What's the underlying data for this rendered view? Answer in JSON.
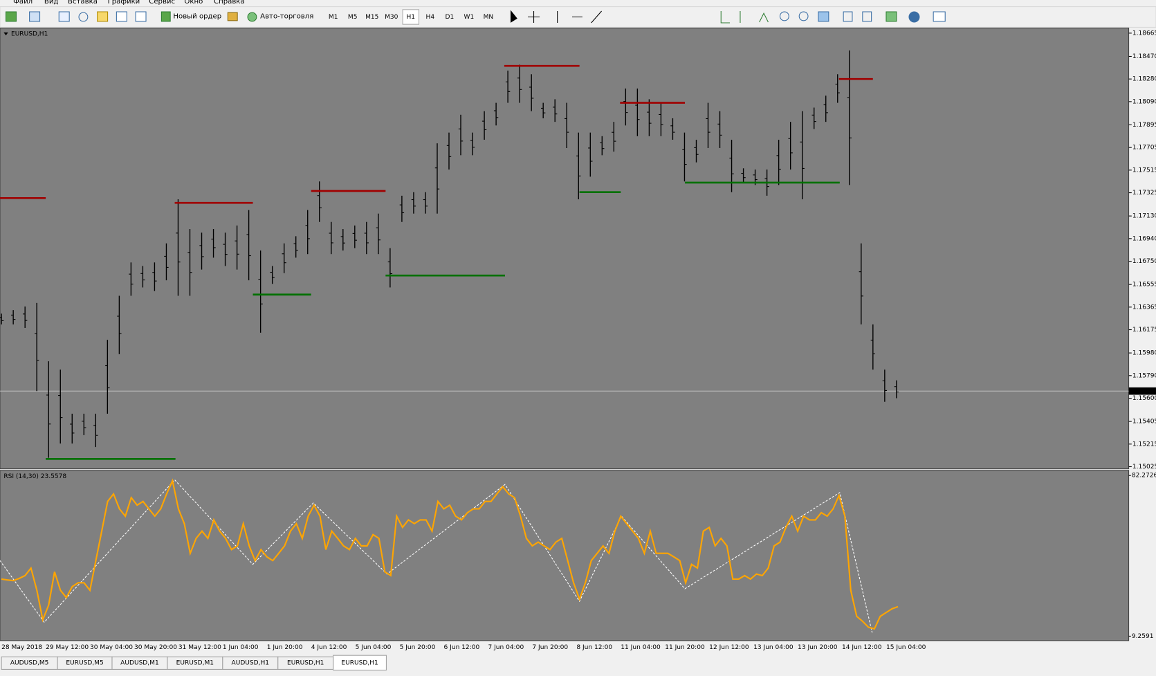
{
  "menu": [
    "Файл",
    "Вид",
    "Вставка",
    "Графики",
    "Сервис",
    "Окно",
    "Справка"
  ],
  "toolbar": {
    "new_order": "Новый ордер",
    "auto_trading": "Авто-торговля",
    "timeframes": [
      "M1",
      "M5",
      "M15",
      "M30",
      "H1",
      "H4",
      "D1",
      "W1",
      "MN"
    ]
  },
  "chart": {
    "title": "EURUSD,H1",
    "price_axis": {
      "ylim": [
        1.15007,
        1.18708
      ],
      "yticks": [
        1.18665,
        {
          "value": 1.1847,
          "label": "1.18470"
        },
        {
          "value": 1.1828,
          "label": "1.18280"
        },
        {
          "value": 1.1809,
          "label": "1.18090"
        },
        1.17895,
        1.17705,
        1.17515,
        1.17325,
        {
          "value": 1.1713,
          "label": "1.17130"
        },
        {
          "value": 1.1694,
          "label": "1.16940"
        },
        {
          "value": 1.1675,
          "label": "1.16750"
        },
        1.16555,
        1.16365,
        1.16175,
        {
          "value": 1.1598,
          "label": "1.15980"
        },
        {
          "value": 1.1579,
          "label": "1.15790"
        },
        {
          "value": 1.156,
          "label": "1.15600"
        },
        1.15405,
        1.15215,
        1.15025
      ]
    },
    "current_price": {
      "value": 1.1566,
      "label": "1.15660"
    },
    "bar_color": "#000000",
    "highs": [
      1.1631,
      1.1634,
      1.1637,
      1.164,
      1.1591,
      1.1584,
      1.1547,
      1.1547,
      1.1547,
      1.1609,
      1.1646,
      1.1674,
      1.1671,
      1.1674,
      1.169,
      1.1727,
      1.1702,
      1.1699,
      1.1702,
      1.1699,
      1.1705,
      1.1718,
      1.1684,
      1.1671,
      1.169,
      1.1696,
      1.1718,
      1.1742,
      1.1708,
      1.1702,
      1.1705,
      1.1708,
      1.1715,
      1.1686,
      1.173,
      1.1733,
      1.1733,
      1.1774,
      1.1783,
      1.1798,
      1.1783,
      1.1801,
      1.1808,
      1.1835,
      1.184,
      1.1832,
      1.1808,
      1.1811,
      1.1808,
      1.1783,
      1.1783,
      1.178,
      1.1792,
      1.182,
      1.182,
      1.1811,
      1.1808,
      1.1795,
      1.1783,
      1.1777,
      1.1808,
      1.1801,
      1.1777,
      1.1753,
      1.1752,
      1.1752,
      1.1777,
      1.1792,
      1.1801,
      1.1804,
      1.1814,
      1.1832,
      1.1852,
      1.169,
      1.1622,
      1.1584,
      1.1575
    ],
    "lows": [
      1.1622,
      1.1622,
      1.1619,
      1.1566,
      1.151,
      1.1522,
      1.1522,
      1.1529,
      1.1519,
      1.1547,
      1.1597,
      1.1646,
      1.1653,
      1.165,
      1.1659,
      1.1646,
      1.1646,
      1.1668,
      1.1678,
      1.1671,
      1.1668,
      1.1659,
      1.1615,
      1.1656,
      1.1665,
      1.1678,
      1.1681,
      1.1708,
      1.1681,
      1.1684,
      1.1686,
      1.1681,
      1.1681,
      1.1653,
      1.1708,
      1.1715,
      1.1715,
      1.1715,
      1.1752,
      1.1764,
      1.1764,
      1.1777,
      1.1789,
      1.1808,
      1.1808,
      1.1801,
      1.1795,
      1.1792,
      1.177,
      1.1727,
      1.1746,
      1.1764,
      1.1767,
      1.1789,
      1.178,
      1.178,
      1.178,
      1.1777,
      1.1742,
      1.1758,
      1.177,
      1.177,
      1.1733,
      1.1741,
      1.1739,
      1.173,
      1.1739,
      1.1752,
      1.1727,
      1.1786,
      1.1792,
      1.1808,
      1.1739,
      1.1622,
      1.1584,
      1.1557,
      1.156
    ],
    "resistance": {
      "color": "#a00000",
      "prices": [
        1.1728,
        1.1724,
        1.1734,
        1.1839,
        1.1808,
        1.1828
      ]
    },
    "support": {
      "color": "#007000",
      "prices": [
        1.1509,
        1.1647,
        1.1663,
        1.1733,
        1.1741
      ]
    }
  },
  "rsi": {
    "title": "RSI (14,30) 23.5578",
    "ylim": [
      7.24,
      84.63
    ],
    "yticks": [
      82.2726,
      9.2591
    ],
    "color": "#ffa500",
    "values": [
      35.2,
      34.8,
      34.5,
      35.5,
      36.8,
      40.2,
      30.1,
      16.7,
      23.4,
      38.5,
      30.1,
      26.8,
      31.8,
      33.5,
      33.5,
      30.1,
      43.6,
      57.0,
      70.5,
      73.9,
      67.1,
      63.8,
      72.2,
      68.8,
      70.5,
      67.1,
      63.8,
      67.1,
      73.9,
      79.9,
      67.1,
      60.4,
      46.9,
      53.7,
      57.0,
      53.7,
      62.1,
      57.0,
      53.7,
      48.6,
      50.3,
      60.4,
      50.3,
      43.6,
      48.6,
      45.3,
      43.6,
      46.9,
      50.3,
      57.0,
      60.4,
      53.7,
      63.8,
      68.8,
      63.8,
      48.6,
      57.0,
      53.7,
      50.3,
      48.6,
      53.7,
      50.3,
      50.3,
      55.4,
      53.7,
      38.5,
      36.8,
      63.8,
      58.7,
      62.1,
      60.4,
      62.1,
      62.1,
      57.0,
      70.5,
      67.1,
      68.8,
      63.8,
      62.1,
      65.4,
      67.1,
      67.1,
      70.5,
      70.5,
      73.9,
      77.2,
      73.9,
      72.2,
      63.8,
      53.7,
      50.3,
      52.0,
      50.3,
      48.6,
      52.0,
      53.7,
      43.6,
      33.5,
      26.1,
      33.5,
      43.6,
      46.9,
      50.3,
      46.9,
      57.0,
      63.8,
      60.4,
      57.0,
      53.7,
      46.9,
      57.0,
      46.9,
      46.9,
      46.9,
      45.3,
      43.6,
      33.5,
      41.9,
      40.2,
      57.0,
      58.7,
      50.3,
      53.7,
      50.3,
      35.2,
      35.2,
      36.8,
      35.2,
      37.5,
      36.8,
      40.2,
      50.3,
      52.0,
      58.7,
      63.8,
      57.0,
      63.8,
      62.1,
      62.1,
      65.4,
      63.8,
      67.1,
      73.2,
      63.8,
      30.1,
      18.3,
      16.0,
      13.3,
      12.6,
      18.3,
      20.0,
      21.7,
      22.7
    ],
    "zigzag": [
      43.6,
      15.6,
      80.3,
      41.9,
      69.8,
      37.5,
      78.2,
      25.1,
      63.8,
      30.8,
      74.5,
      10.9
    ]
  },
  "time_axis": [
    "28 May 2018",
    "29 May 12:00",
    "30 May 04:00",
    "30 May 20:00",
    "31 May 12:00",
    "1 Jun 04:00",
    "1 Jun 20:00",
    "4 Jun 12:00",
    "5 Jun 04:00",
    "5 Jun 20:00",
    "6 Jun 12:00",
    "7 Jun 04:00",
    "7 Jun 20:00",
    "8 Jun 12:00",
    "11 Jun 04:00",
    "11 Jun 20:00",
    "12 Jun 12:00",
    "13 Jun 04:00",
    "13 Jun 20:00",
    "14 Jun 12:00",
    "15 Jun 04:00"
  ],
  "tabs": [
    "AUDUSD,M5",
    "EURUSD,M5",
    "AUDUSD,M1",
    "EURUSD,M1",
    "AUDUSD,H1",
    "EURUSD,H1",
    "EURUSD,H1"
  ]
}
